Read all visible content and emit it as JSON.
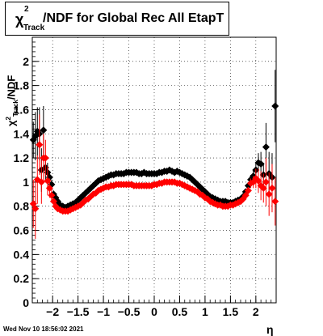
{
  "header": {
    "title_symbol": "χ",
    "title_sup": "2",
    "title_sub": "Track",
    "title_rest": "/NDF for Global Rec All EtapT"
  },
  "axes": {
    "ylabel_symbol": "χ",
    "ylabel_sup": "2",
    "ylabel_sub": "Track",
    "ylabel_rest": "/NDF",
    "xlabel": "η"
  },
  "footer": {
    "timestamp": "Wed Nov 10 18:56:02 2021"
  },
  "colors": {
    "series_black": "#000000",
    "series_red": "#ff0000"
  },
  "chart_data": {
    "type": "scatter",
    "xlim": [
      -2.4,
      2.4
    ],
    "ylim": [
      0,
      2.2
    ],
    "grid": true,
    "xticks": [
      -2,
      -1.5,
      -1,
      -0.5,
      0,
      0.5,
      1,
      1.5,
      2
    ],
    "xtick_labels": [
      "−2",
      "−1.5",
      "−1",
      "−0.5",
      "0",
      "0.5",
      "1",
      "1.5",
      "2"
    ],
    "yticks": [
      0,
      0.2,
      0.4,
      0.6,
      0.8,
      1,
      1.2,
      1.4,
      1.6,
      1.8,
      2
    ],
    "ytick_labels": [
      "0",
      "0.2",
      "0.4",
      "0.6",
      "0.8",
      "1",
      "1.2",
      "1.4",
      "1.6",
      "1.8",
      "2"
    ],
    "series": [
      {
        "color": "#000000",
        "points": [
          [
            -2.38,
            1.35,
            0.15
          ],
          [
            -2.34,
            1.38,
            0.2
          ],
          [
            -2.3,
            1.42,
            0.2
          ],
          [
            -2.26,
            1.4,
            0.22
          ],
          [
            -2.22,
            1.1,
            0.18
          ],
          [
            -2.18,
            1.43,
            0.2
          ],
          [
            -2.14,
            1.12,
            0.1
          ],
          [
            -2.1,
            1.08,
            0.08
          ],
          [
            -2.06,
            1.04,
            0.05
          ],
          [
            -2.02,
            0.98,
            0.04
          ],
          [
            -1.98,
            0.9,
            0.03
          ],
          [
            -1.94,
            0.87,
            0.02
          ],
          [
            -1.9,
            0.84,
            0.01
          ],
          [
            -1.85,
            0.81,
            0
          ],
          [
            -1.8,
            0.8,
            0
          ],
          [
            -1.75,
            0.79,
            0
          ],
          [
            -1.7,
            0.8,
            0
          ],
          [
            -1.65,
            0.81,
            0
          ],
          [
            -1.6,
            0.82,
            0
          ],
          [
            -1.55,
            0.83,
            0
          ],
          [
            -1.5,
            0.85,
            0
          ],
          [
            -1.45,
            0.87,
            0
          ],
          [
            -1.4,
            0.89,
            0
          ],
          [
            -1.35,
            0.91,
            0
          ],
          [
            -1.3,
            0.93,
            0
          ],
          [
            -1.25,
            0.95,
            0
          ],
          [
            -1.2,
            0.97,
            0
          ],
          [
            -1.15,
            0.99,
            0
          ],
          [
            -1.1,
            1.01,
            0
          ],
          [
            -1.05,
            1.02,
            0
          ],
          [
            -1.0,
            1.03,
            0
          ],
          [
            -0.95,
            1.04,
            0
          ],
          [
            -0.9,
            1.05,
            0
          ],
          [
            -0.85,
            1.06,
            0
          ],
          [
            -0.8,
            1.06,
            0
          ],
          [
            -0.75,
            1.07,
            0
          ],
          [
            -0.7,
            1.07,
            0
          ],
          [
            -0.65,
            1.07,
            0
          ],
          [
            -0.6,
            1.07,
            0
          ],
          [
            -0.55,
            1.08,
            0
          ],
          [
            -0.5,
            1.08,
            0
          ],
          [
            -0.45,
            1.08,
            0
          ],
          [
            -0.4,
            1.08,
            0
          ],
          [
            -0.35,
            1.08,
            0
          ],
          [
            -0.3,
            1.07,
            0
          ],
          [
            -0.25,
            1.07,
            0
          ],
          [
            -0.2,
            1.08,
            0
          ],
          [
            -0.15,
            1.07,
            0
          ],
          [
            -0.1,
            1.07,
            0
          ],
          [
            -0.05,
            1.07,
            0
          ],
          [
            0.0,
            1.07,
            0
          ],
          [
            0.05,
            1.07,
            0
          ],
          [
            0.1,
            1.08,
            0
          ],
          [
            0.15,
            1.08,
            0
          ],
          [
            0.2,
            1.09,
            0
          ],
          [
            0.25,
            1.09,
            0
          ],
          [
            0.3,
            1.1,
            0
          ],
          [
            0.35,
            1.09,
            0
          ],
          [
            0.4,
            1.08,
            0
          ],
          [
            0.45,
            1.09,
            0
          ],
          [
            0.5,
            1.08,
            0
          ],
          [
            0.55,
            1.07,
            0
          ],
          [
            0.6,
            1.06,
            0
          ],
          [
            0.65,
            1.05,
            0
          ],
          [
            0.7,
            1.04,
            0
          ],
          [
            0.75,
            1.02,
            0
          ],
          [
            0.8,
            1.0,
            0
          ],
          [
            0.85,
            0.98,
            0
          ],
          [
            0.9,
            0.96,
            0
          ],
          [
            0.95,
            0.94,
            0
          ],
          [
            1.0,
            0.92,
            0
          ],
          [
            1.05,
            0.9,
            0
          ],
          [
            1.1,
            0.88,
            0
          ],
          [
            1.15,
            0.87,
            0
          ],
          [
            1.2,
            0.86,
            0
          ],
          [
            1.25,
            0.85,
            0
          ],
          [
            1.3,
            0.84,
            0
          ],
          [
            1.35,
            0.84,
            0
          ],
          [
            1.4,
            0.84,
            0
          ],
          [
            1.45,
            0.83,
            0
          ],
          [
            1.5,
            0.83,
            0
          ],
          [
            1.55,
            0.83,
            0
          ],
          [
            1.6,
            0.84,
            0
          ],
          [
            1.65,
            0.85,
            0
          ],
          [
            1.7,
            0.86,
            0
          ],
          [
            1.75,
            0.88,
            0
          ],
          [
            1.8,
            0.92,
            0.02
          ],
          [
            1.85,
            0.97,
            0.03
          ],
          [
            1.9,
            1.02,
            0.04
          ],
          [
            1.95,
            1.05,
            0.05
          ],
          [
            2.0,
            1.1,
            0.06
          ],
          [
            2.05,
            1.16,
            0.08
          ],
          [
            2.1,
            1.15,
            0.1
          ],
          [
            2.15,
            1.06,
            0.1
          ],
          [
            2.2,
            1.29,
            0.2
          ],
          [
            2.26,
            1.07,
            0.18
          ],
          [
            2.32,
            1.04,
            0.2
          ],
          [
            2.38,
            1.63,
            0.3
          ]
        ]
      },
      {
        "color": "#ff0000",
        "points": [
          [
            -2.38,
            0.82,
            0.2
          ],
          [
            -2.34,
            0.78,
            0.25
          ],
          [
            -2.3,
            1.02,
            0.2
          ],
          [
            -2.26,
            1.31,
            0.25
          ],
          [
            -2.22,
            1.0,
            0.18
          ],
          [
            -2.18,
            1.2,
            0.2
          ],
          [
            -2.14,
            1.2,
            0.15
          ],
          [
            -2.1,
            1.01,
            0.12
          ],
          [
            -2.06,
            0.95,
            0.08
          ],
          [
            -2.02,
            0.89,
            0.05
          ],
          [
            -1.98,
            0.84,
            0.03
          ],
          [
            -1.94,
            0.8,
            0.02
          ],
          [
            -1.9,
            0.78,
            0.01
          ],
          [
            -1.85,
            0.77,
            0
          ],
          [
            -1.8,
            0.76,
            0
          ],
          [
            -1.75,
            0.76,
            0
          ],
          [
            -1.7,
            0.76,
            0
          ],
          [
            -1.65,
            0.77,
            0
          ],
          [
            -1.6,
            0.78,
            0
          ],
          [
            -1.55,
            0.79,
            0
          ],
          [
            -1.5,
            0.8,
            0
          ],
          [
            -1.45,
            0.81,
            0
          ],
          [
            -1.4,
            0.83,
            0
          ],
          [
            -1.35,
            0.85,
            0
          ],
          [
            -1.3,
            0.86,
            0
          ],
          [
            -1.25,
            0.88,
            0
          ],
          [
            -1.2,
            0.9,
            0
          ],
          [
            -1.15,
            0.91,
            0
          ],
          [
            -1.1,
            0.93,
            0
          ],
          [
            -1.05,
            0.94,
            0
          ],
          [
            -1.0,
            0.95,
            0
          ],
          [
            -0.95,
            0.96,
            0
          ],
          [
            -0.9,
            0.96,
            0
          ],
          [
            -0.85,
            0.97,
            0
          ],
          [
            -0.8,
            0.97,
            0
          ],
          [
            -0.75,
            0.98,
            0
          ],
          [
            -0.7,
            0.98,
            0
          ],
          [
            -0.65,
            0.98,
            0
          ],
          [
            -0.6,
            0.98,
            0
          ],
          [
            -0.55,
            0.98,
            0
          ],
          [
            -0.5,
            0.98,
            0
          ],
          [
            -0.45,
            0.98,
            0
          ],
          [
            -0.4,
            0.97,
            0
          ],
          [
            -0.35,
            0.97,
            0
          ],
          [
            -0.3,
            0.97,
            0
          ],
          [
            -0.25,
            0.97,
            0
          ],
          [
            -0.2,
            0.97,
            0
          ],
          [
            -0.15,
            0.97,
            0
          ],
          [
            -0.1,
            0.97,
            0
          ],
          [
            -0.05,
            0.97,
            0
          ],
          [
            0.0,
            0.98,
            0
          ],
          [
            0.05,
            0.98,
            0
          ],
          [
            0.1,
            0.99,
            0
          ],
          [
            0.15,
            0.99,
            0
          ],
          [
            0.2,
            1.0,
            0
          ],
          [
            0.25,
            1.0,
            0
          ],
          [
            0.3,
            1.0,
            0
          ],
          [
            0.35,
            1.0,
            0
          ],
          [
            0.4,
            1.0,
            0
          ],
          [
            0.45,
            0.99,
            0
          ],
          [
            0.5,
            0.99,
            0
          ],
          [
            0.55,
            0.98,
            0
          ],
          [
            0.6,
            0.97,
            0
          ],
          [
            0.65,
            0.96,
            0
          ],
          [
            0.7,
            0.95,
            0
          ],
          [
            0.75,
            0.94,
            0
          ],
          [
            0.8,
            0.93,
            0
          ],
          [
            0.85,
            0.92,
            0
          ],
          [
            0.9,
            0.9,
            0
          ],
          [
            0.95,
            0.89,
            0
          ],
          [
            1.0,
            0.87,
            0
          ],
          [
            1.05,
            0.86,
            0
          ],
          [
            1.1,
            0.84,
            0
          ],
          [
            1.15,
            0.83,
            0
          ],
          [
            1.2,
            0.82,
            0
          ],
          [
            1.25,
            0.81,
            0
          ],
          [
            1.3,
            0.81,
            0
          ],
          [
            1.35,
            0.8,
            0
          ],
          [
            1.4,
            0.8,
            0
          ],
          [
            1.45,
            0.8,
            0
          ],
          [
            1.5,
            0.81,
            0
          ],
          [
            1.55,
            0.81,
            0
          ],
          [
            1.6,
            0.82,
            0
          ],
          [
            1.65,
            0.83,
            0
          ],
          [
            1.7,
            0.84,
            0
          ],
          [
            1.75,
            0.86,
            0
          ],
          [
            1.8,
            0.89,
            0.02
          ],
          [
            1.85,
            0.93,
            0.03
          ],
          [
            1.9,
            0.99,
            0.04
          ],
          [
            1.95,
            1.0,
            0.05
          ],
          [
            2.0,
            1.03,
            0.08
          ],
          [
            2.05,
            1.01,
            0.1
          ],
          [
            2.1,
            0.97,
            0.12
          ],
          [
            2.15,
            0.95,
            0.12
          ],
          [
            2.2,
            1.0,
            0.2
          ],
          [
            2.26,
            0.9,
            0.18
          ],
          [
            2.32,
            0.95,
            0.2
          ],
          [
            2.38,
            0.84,
            0.2
          ]
        ]
      }
    ]
  }
}
